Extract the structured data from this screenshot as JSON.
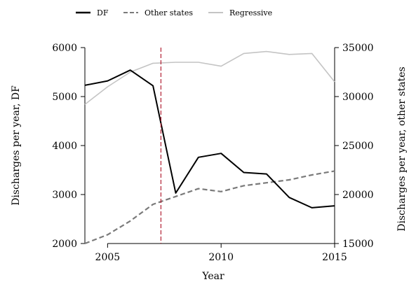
{
  "chart_data": {
    "type": "line",
    "title": "",
    "xlabel": "Year",
    "ylabel_left": "Discharges per year, DF",
    "ylabel_right": "Discharges per year, other states",
    "xlim": [
      2004,
      2015
    ],
    "ylim_left": [
      2000,
      6000
    ],
    "ylim_right": [
      15000,
      35000
    ],
    "x_ticks": [
      2005,
      2010,
      2015
    ],
    "y_left_ticks": [
      2000,
      3000,
      4000,
      5000,
      6000
    ],
    "y_right_ticks": [
      15000,
      20000,
      25000,
      30000,
      35000
    ],
    "grid": false,
    "legend_position": "top",
    "vline": {
      "x": 2007.35,
      "color": "#b22234"
    },
    "series": [
      {
        "name": "DF",
        "axis": "left",
        "color": "#000000",
        "style": "solid",
        "x": [
          2004,
          2005,
          2006,
          2007,
          2008,
          2009,
          2010,
          2011,
          2012,
          2013,
          2014,
          2015
        ],
        "values": [
          5230,
          5320,
          5540,
          5220,
          3030,
          3760,
          3840,
          3450,
          3420,
          2940,
          2730,
          2770
        ]
      },
      {
        "name": "Other states",
        "axis": "right",
        "color": "#7a7a7a",
        "style": "dashed",
        "x": [
          2004,
          2005,
          2006,
          2007,
          2008,
          2009,
          2010,
          2011,
          2012,
          2013,
          2014,
          2015
        ],
        "values": [
          15000,
          15900,
          17300,
          19000,
          19800,
          20600,
          20300,
          20900,
          21200,
          21500,
          22000,
          22400
        ]
      },
      {
        "name": "Regressive",
        "axis": "right",
        "color": "#c4c4c4",
        "style": "solid",
        "x": [
          2004,
          2005,
          2006,
          2007,
          2008,
          2009,
          2010,
          2011,
          2012,
          2013,
          2014,
          2015
        ],
        "values": [
          29200,
          31000,
          32500,
          33400,
          33500,
          33500,
          33100,
          34400,
          34600,
          34300,
          34400,
          31500
        ]
      }
    ]
  }
}
